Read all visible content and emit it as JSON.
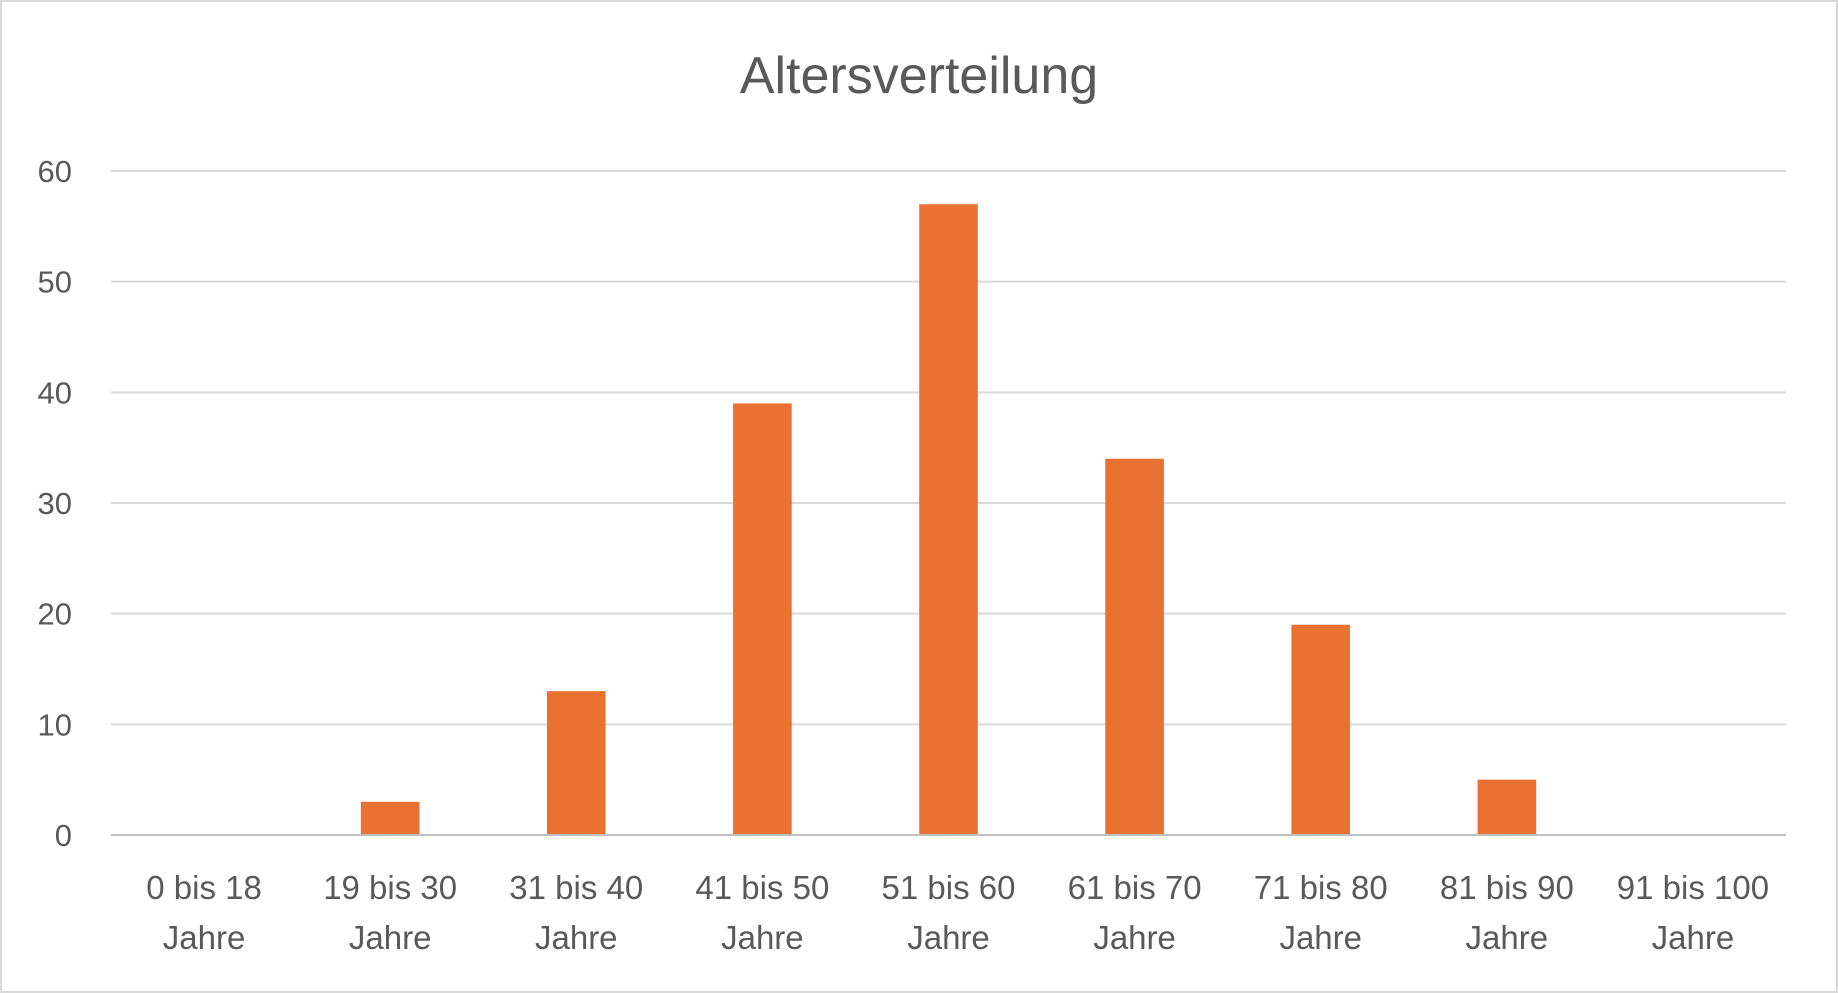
{
  "chart_data": {
    "type": "bar",
    "title": "Altersverteilung",
    "xlabel": "",
    "ylabel": "",
    "categories": [
      [
        "0 bis 18",
        "Jahre"
      ],
      [
        "19 bis 30",
        "Jahre"
      ],
      [
        "31 bis 40",
        "Jahre"
      ],
      [
        "41 bis 50",
        "Jahre"
      ],
      [
        "51 bis 60",
        "Jahre"
      ],
      [
        "61 bis 70",
        "Jahre"
      ],
      [
        "71 bis 80",
        "Jahre"
      ],
      [
        "81 bis 90",
        "Jahre"
      ],
      [
        "91 bis 100",
        "Jahre"
      ]
    ],
    "values": [
      0,
      3,
      13,
      39,
      57,
      34,
      19,
      5,
      0
    ],
    "ylim": [
      0,
      60
    ],
    "yticks": [
      0,
      10,
      20,
      30,
      40,
      50,
      60
    ],
    "grid": true,
    "legend": "none",
    "bar_color": "#E97132"
  }
}
